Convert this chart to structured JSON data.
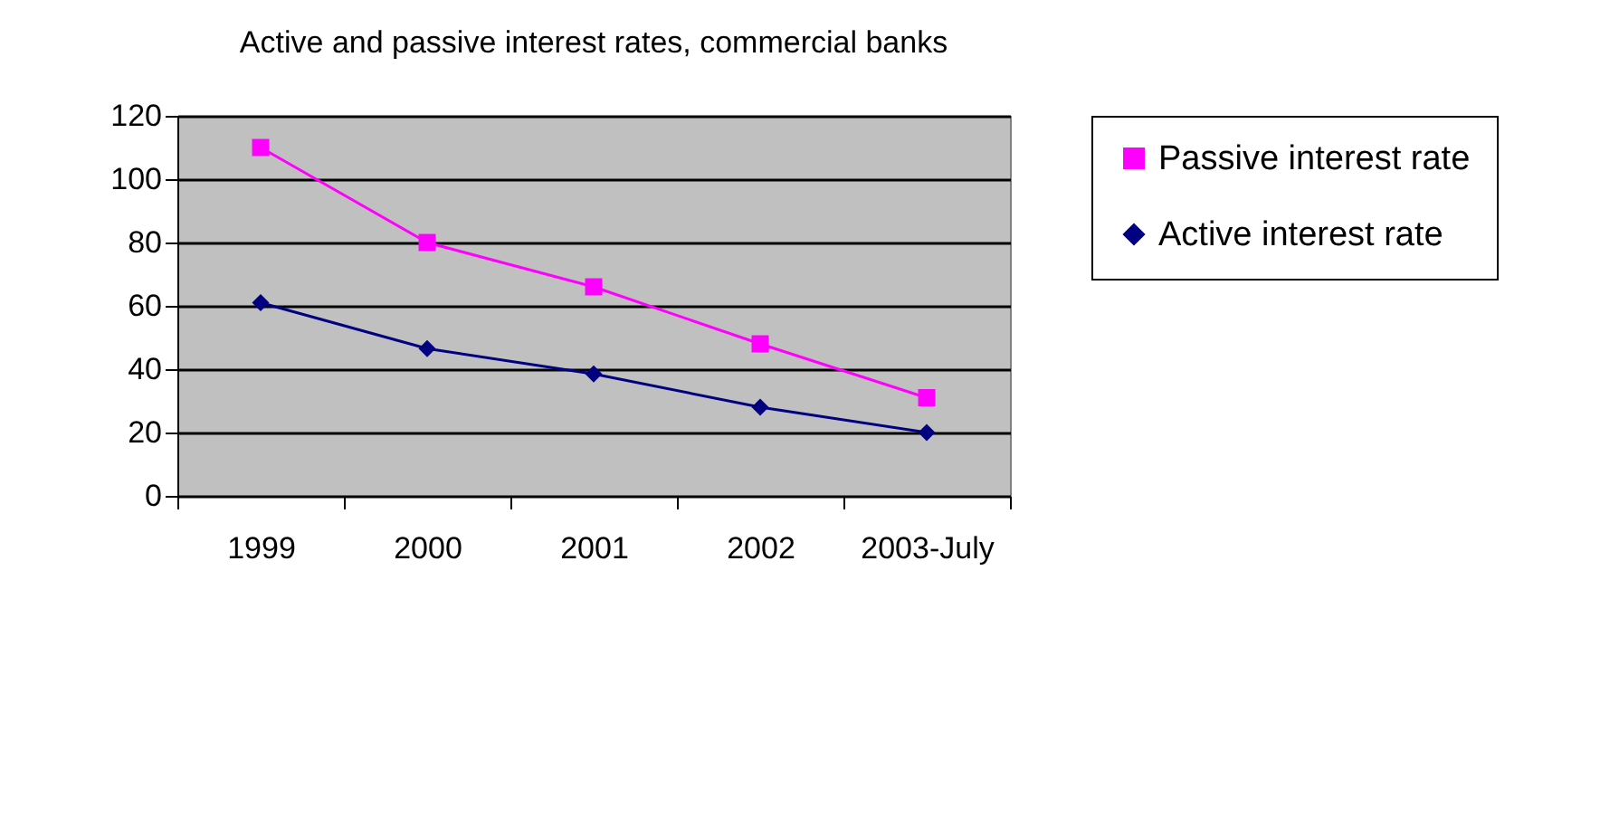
{
  "chart_data": {
    "type": "line",
    "title": "Active and passive interest rates, commercial banks",
    "categories": [
      "1999",
      "2000",
      "2001",
      "2002",
      "2003-July"
    ],
    "series": [
      {
        "name": "Passive interest rate",
        "color": "#ff00ff",
        "marker": "square",
        "values": [
          110,
          80,
          66,
          48,
          31
        ]
      },
      {
        "name": "Active interest rate",
        "color": "#000080",
        "marker": "diamond",
        "values": [
          61,
          46.5,
          38.5,
          28,
          20
        ]
      }
    ],
    "ylim": [
      0,
      120
    ],
    "yticks": [
      0,
      20,
      40,
      60,
      80,
      100,
      120
    ],
    "grid": "y",
    "legend": "right"
  }
}
